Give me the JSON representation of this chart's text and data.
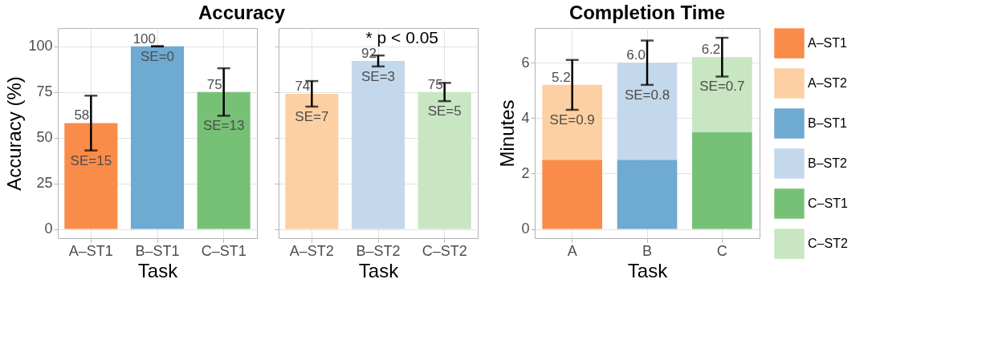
{
  "chart_data": [
    {
      "type": "bar",
      "title": "Accuracy",
      "xlabel": "Task",
      "ylabel": "Accuracy (%)",
      "categories": [
        "A–ST1",
        "B–ST1",
        "C–ST1"
      ],
      "values": [
        58,
        100,
        75
      ],
      "colors": [
        "#f98c48",
        "#6eaad1",
        "#77c177"
      ],
      "errors": [
        15,
        0,
        13
      ],
      "data_labels": true,
      "ylim": [
        -5,
        110
      ],
      "yticks": [
        0,
        25,
        50,
        75,
        100
      ],
      "grid": true,
      "annotations": [
        "SE=15",
        "SE=0",
        "SE=13"
      ]
    },
    {
      "type": "bar",
      "xlabel": "Task",
      "categories": [
        "A–ST2",
        "B–ST2",
        "C–ST2"
      ],
      "values": [
        74,
        92,
        75
      ],
      "colors": [
        "#fcd0a2",
        "#c4d8ec",
        "#c8e6c1"
      ],
      "errors": [
        7,
        3,
        5
      ],
      "data_labels": true,
      "ylim": [
        -5,
        110
      ],
      "yticks": [
        0,
        25,
        50,
        75,
        100
      ],
      "grid": true,
      "tick_labels": "x",
      "annotations": [
        "SE=7",
        "SE=3",
        "SE=5",
        "* p < 0.05"
      ]
    },
    {
      "type": "bar",
      "stacked": true,
      "title": "Completion Time",
      "xlabel": "Task",
      "ylabel": "Minutes",
      "categories": [
        "A",
        "B",
        "C"
      ],
      "ylim": [
        -0.33,
        7.25
      ],
      "yticks": [
        0,
        2,
        4,
        6
      ],
      "grid": true,
      "legend": "right",
      "series": [
        {
          "name": "A–ST1",
          "color": "#f98c48",
          "values": [
            2.5,
            null,
            null
          ]
        },
        {
          "name": "A–ST2",
          "color": "#fcd0a2",
          "values": [
            2.7,
            null,
            null
          ],
          "errors": [
            0.9,
            null,
            null
          ]
        },
        {
          "name": "B–ST1",
          "color": "#6eaad1",
          "values": [
            null,
            2.5,
            null
          ]
        },
        {
          "name": "B–ST2",
          "color": "#c4d8ec",
          "values": [
            null,
            3.5,
            null
          ],
          "errors": [
            null,
            0.8,
            null
          ]
        },
        {
          "name": "C–ST1",
          "color": "#77c177",
          "values": [
            null,
            null,
            3.5
          ]
        },
        {
          "name": "C–ST2",
          "color": "#c8e6c1",
          "values": [
            null,
            null,
            2.7
          ],
          "errors": [
            null,
            null,
            0.7
          ]
        }
      ],
      "totals": [
        "5.2",
        "6.0",
        "6.2"
      ],
      "annotations": [
        "SE=0.9",
        "SE=0.8",
        "SE=0.7"
      ]
    }
  ]
}
